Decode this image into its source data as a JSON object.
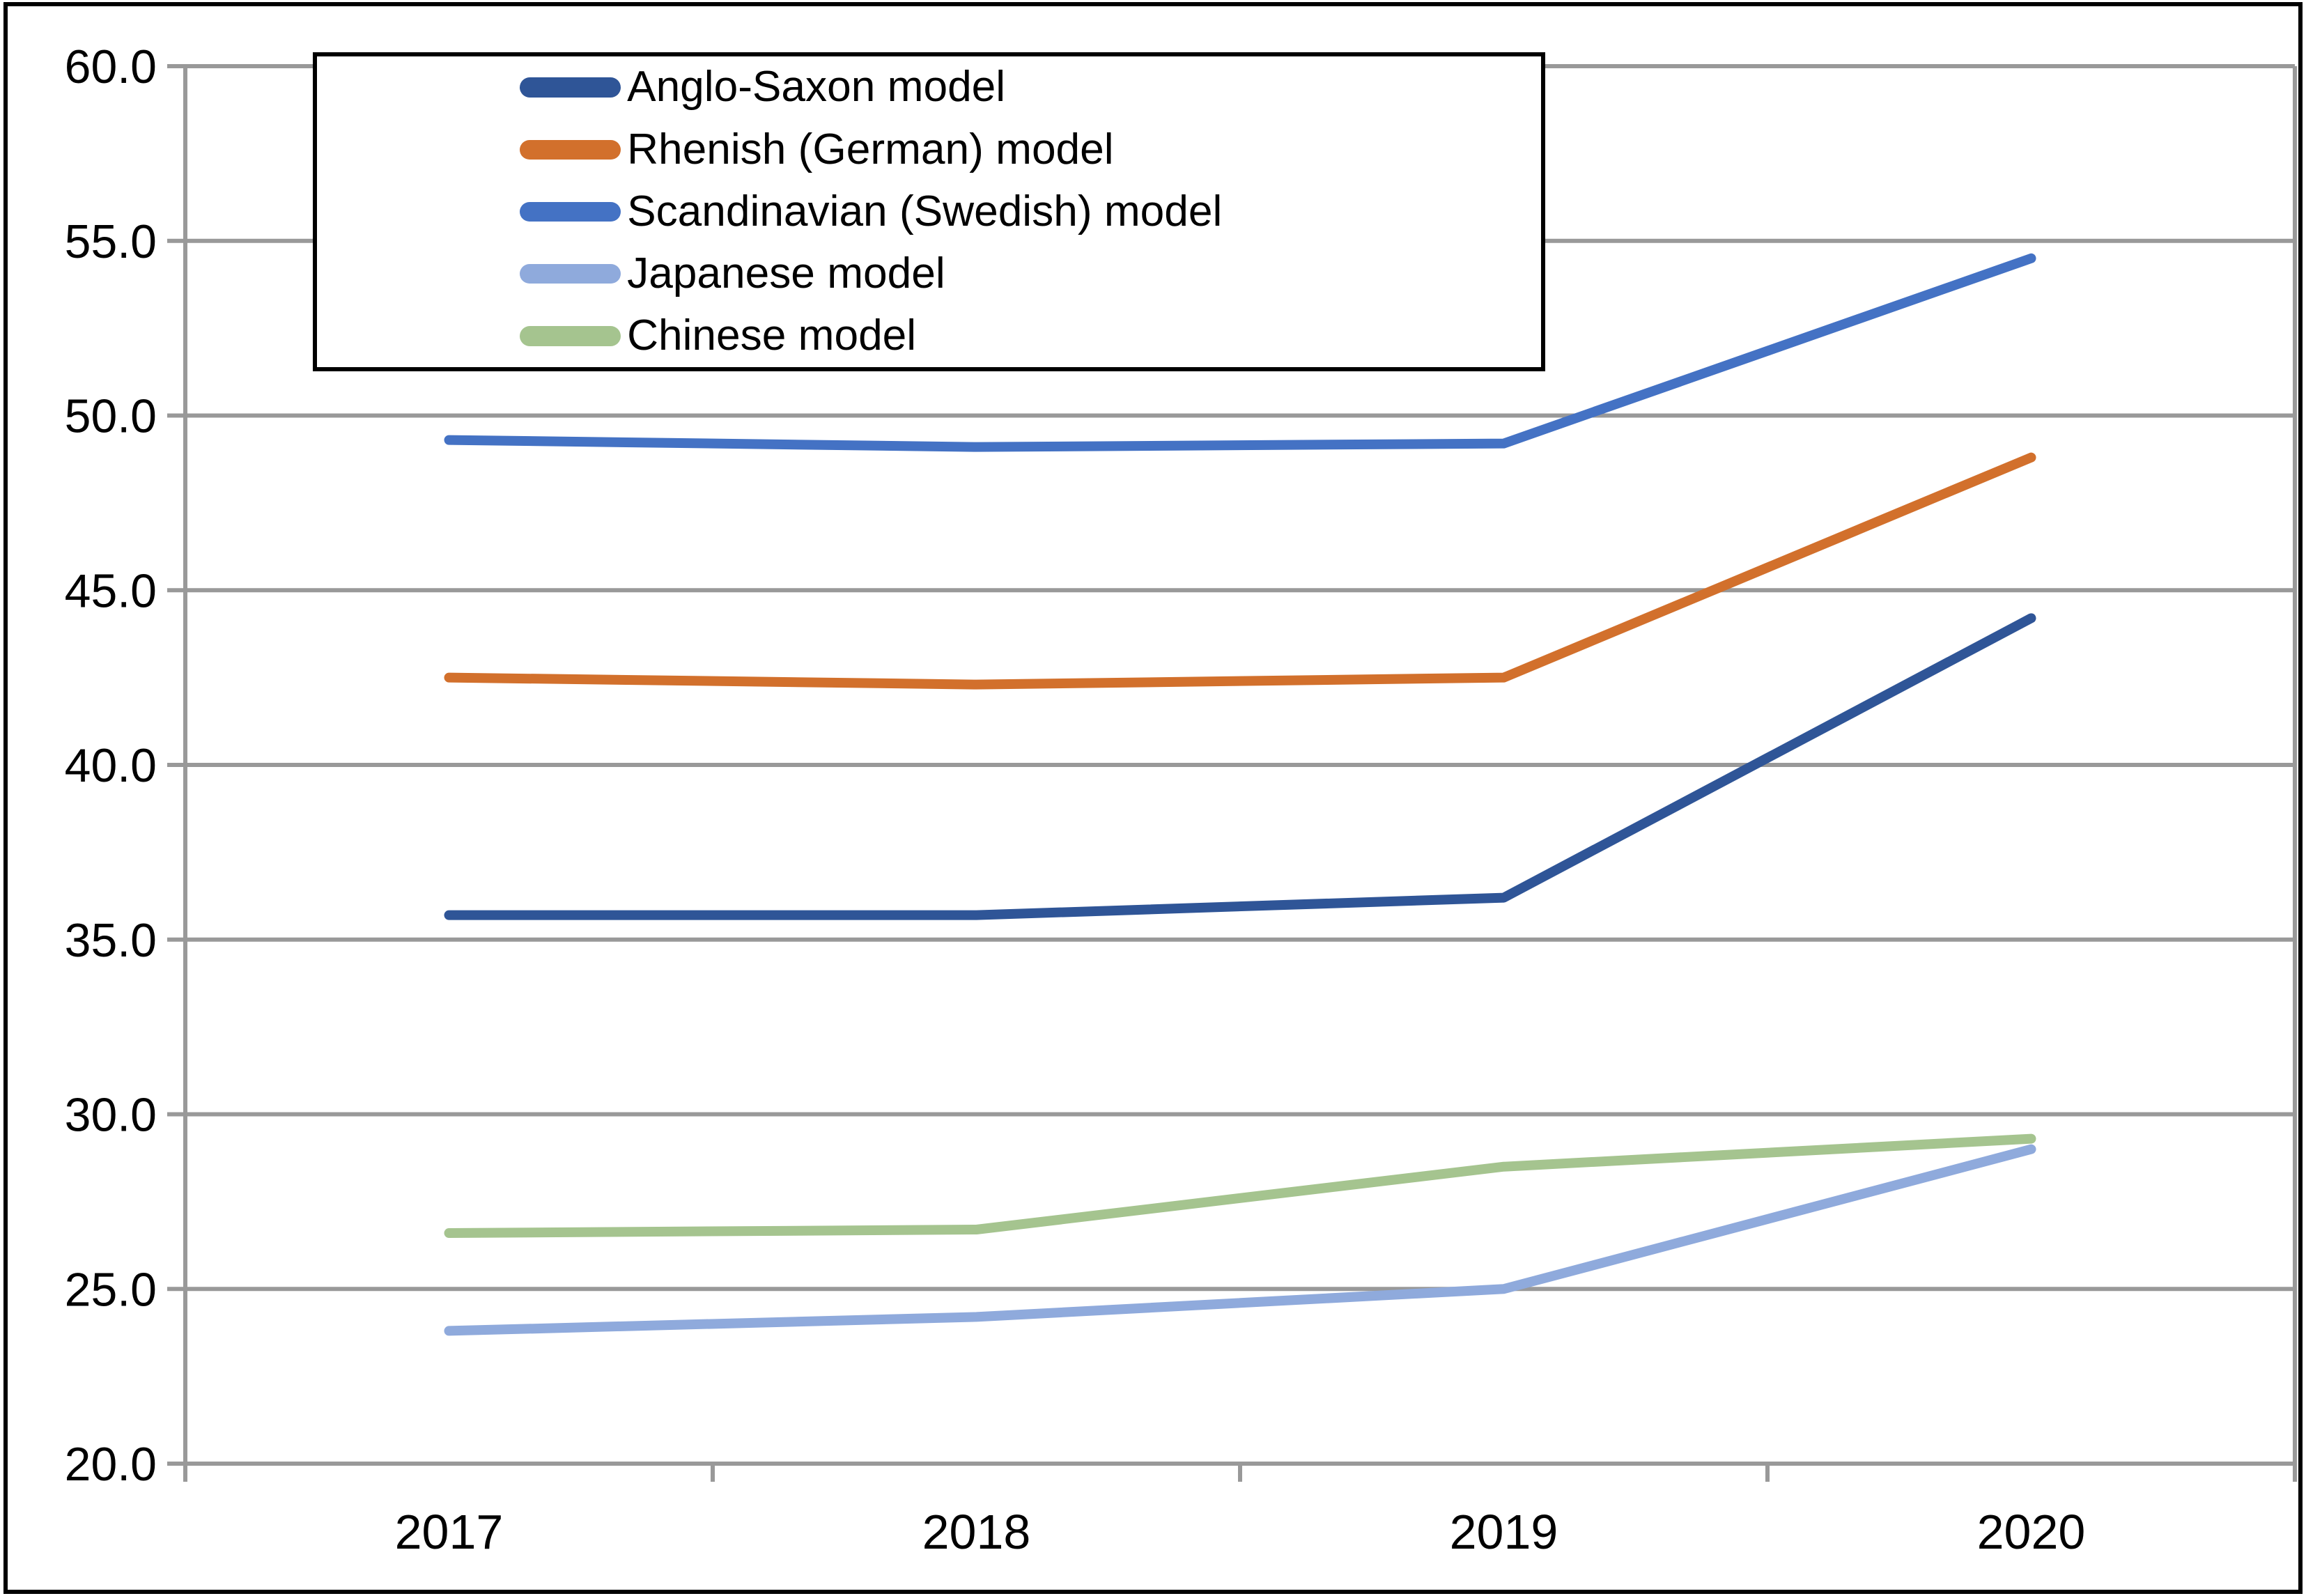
{
  "figure": {
    "background": "#ffffff",
    "border_color": "#000000",
    "gridline_color": "#999999",
    "axis_color": "#999999",
    "text_color": "#000000"
  },
  "chart_data": {
    "type": "line",
    "title": "",
    "xlabel": "",
    "ylabel": "",
    "categories": [
      "2017",
      "2018",
      "2019",
      "2020"
    ],
    "series": [
      {
        "name": "Anglo-Saxon model",
        "color": "#2F5597",
        "values": [
          35.7,
          35.7,
          36.2,
          44.2
        ]
      },
      {
        "name": "Rhenish (German) model",
        "color": "#D2702C",
        "values": [
          42.5,
          42.3,
          42.5,
          48.8
        ]
      },
      {
        "name": "Scandinavian (Swedish) model",
        "color": "#4472C4",
        "values": [
          49.3,
          49.1,
          49.2,
          54.5
        ]
      },
      {
        "name": "Japanese model",
        "color": "#8FAADC",
        "values": [
          23.8,
          24.2,
          25.0,
          29.0
        ]
      },
      {
        "name": "Chinese model",
        "color": "#A5C48F",
        "values": [
          26.6,
          26.7,
          28.5,
          29.3
        ]
      }
    ],
    "ylim": [
      20,
      60
    ],
    "y_tick_step": 5,
    "y_tick_labels": [
      "60.0",
      "55.0",
      "50.0",
      "45.0",
      "40.0",
      "35.0",
      "30.0",
      "25.0",
      "20.0"
    ],
    "grid": true,
    "legend_position": "top-left-inside"
  }
}
